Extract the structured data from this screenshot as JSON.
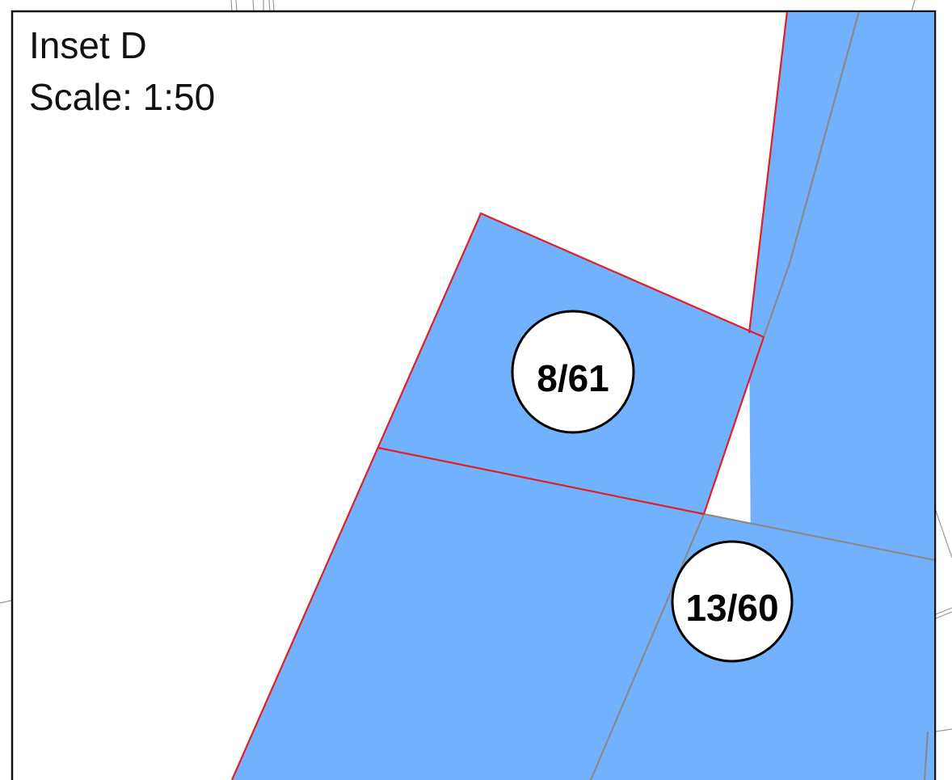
{
  "inset": {
    "title": "Inset D",
    "scale": "Scale: 1:50"
  },
  "parcels": [
    {
      "id": "8/61",
      "label": "8/61"
    },
    {
      "id": "13/60",
      "label": "13/60"
    }
  ],
  "colors": {
    "parcel_fill": "#71b1fd",
    "boundary_red": "#e01f26",
    "boundary_grey": "#8a8a8a",
    "frame": "#111111",
    "label_circle_fill": "#ffffff"
  }
}
